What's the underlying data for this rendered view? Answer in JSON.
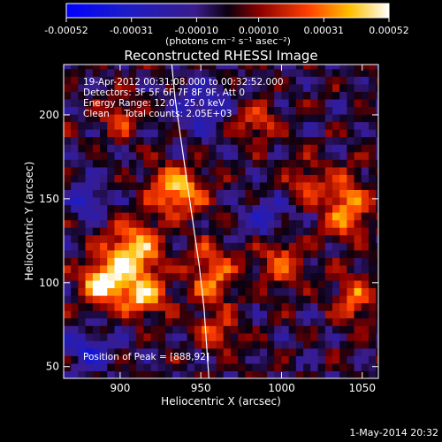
{
  "chart_data": {
    "type": "heatmap",
    "title": "Reconstructed RHESSI Image",
    "xlabel": "Heliocentric X (arcsec)",
    "ylabel": "Heliocentric Y (arcsec)",
    "xlim": [
      865,
      1060
    ],
    "ylim": [
      43,
      230
    ],
    "x_ticks": [
      900,
      950,
      1000,
      1050
    ],
    "y_ticks": [
      50,
      100,
      150,
      200
    ],
    "colorbar": {
      "range": [
        -0.00052,
        0.00052
      ],
      "tick_values": [
        -0.00052,
        -0.00031,
        -0.0001,
        0.0001,
        0.00031,
        0.00052
      ],
      "tick_labels": [
        "-0.00052",
        "-0.00031",
        "-0.00010",
        "0.00010",
        "0.00031",
        "0.00052"
      ],
      "unit_label": "(photons cm⁻² s⁻¹ asec⁻²)"
    },
    "annotations": {
      "time_range": "19-Apr-2012 00:31:08.000 to 00:32:52.000",
      "detectors": "Detectors: 3F 5F 6F 7F 8F 9F, Att 0",
      "energy": "Energy Range: 12.0 - 25.0 keV",
      "clean": "Clean     Total counts: 2.05E+03",
      "peak": "Position of Peak = [888,92]"
    },
    "peak_position": [
      888,
      92
    ],
    "emission_blobs": [
      {
        "x": 890,
        "y": 100,
        "sx": 10,
        "sy": 9,
        "amp": 1.0
      },
      {
        "x": 908,
        "y": 118,
        "sx": 12,
        "sy": 12,
        "amp": 0.9
      },
      {
        "x": 915,
        "y": 92,
        "sx": 9,
        "sy": 8,
        "amp": 0.8
      },
      {
        "x": 935,
        "y": 155,
        "sx": 12,
        "sy": 10,
        "amp": 0.85
      },
      {
        "x": 957,
        "y": 105,
        "sx": 10,
        "sy": 14,
        "amp": 0.6
      },
      {
        "x": 1000,
        "y": 112,
        "sx": 10,
        "sy": 10,
        "amp": 0.55
      },
      {
        "x": 1040,
        "y": 145,
        "sx": 10,
        "sy": 14,
        "amp": 0.7
      },
      {
        "x": 985,
        "y": 195,
        "sx": 9,
        "sy": 8,
        "amp": 0.5
      },
      {
        "x": 1045,
        "y": 90,
        "sx": 8,
        "sy": 10,
        "amp": 0.6
      },
      {
        "x": 960,
        "y": 70,
        "sx": 9,
        "sy": 7,
        "amp": 0.5
      },
      {
        "x": 900,
        "y": 200,
        "sx": 9,
        "sy": 9,
        "amp": 0.45
      },
      {
        "x": 1015,
        "y": 160,
        "sx": 9,
        "sy": 9,
        "amp": 0.4
      },
      {
        "x": 880,
        "y": 150,
        "sx": 7,
        "sy": 8,
        "amp": -0.5
      },
      {
        "x": 950,
        "y": 205,
        "sx": 12,
        "sy": 10,
        "amp": -0.45
      },
      {
        "x": 880,
        "y": 60,
        "sx": 10,
        "sy": 8,
        "amp": -0.5
      },
      {
        "x": 990,
        "y": 140,
        "sx": 10,
        "sy": 9,
        "amp": -0.4
      }
    ],
    "limb_curve": {
      "x": [
        932,
        934,
        937,
        940,
        943,
        946,
        949,
        952,
        955
      ],
      "y": [
        230,
        210,
        190,
        170,
        150,
        130,
        110,
        85,
        43
      ]
    }
  },
  "footer": {
    "date": "1-May-2014 20:32"
  }
}
